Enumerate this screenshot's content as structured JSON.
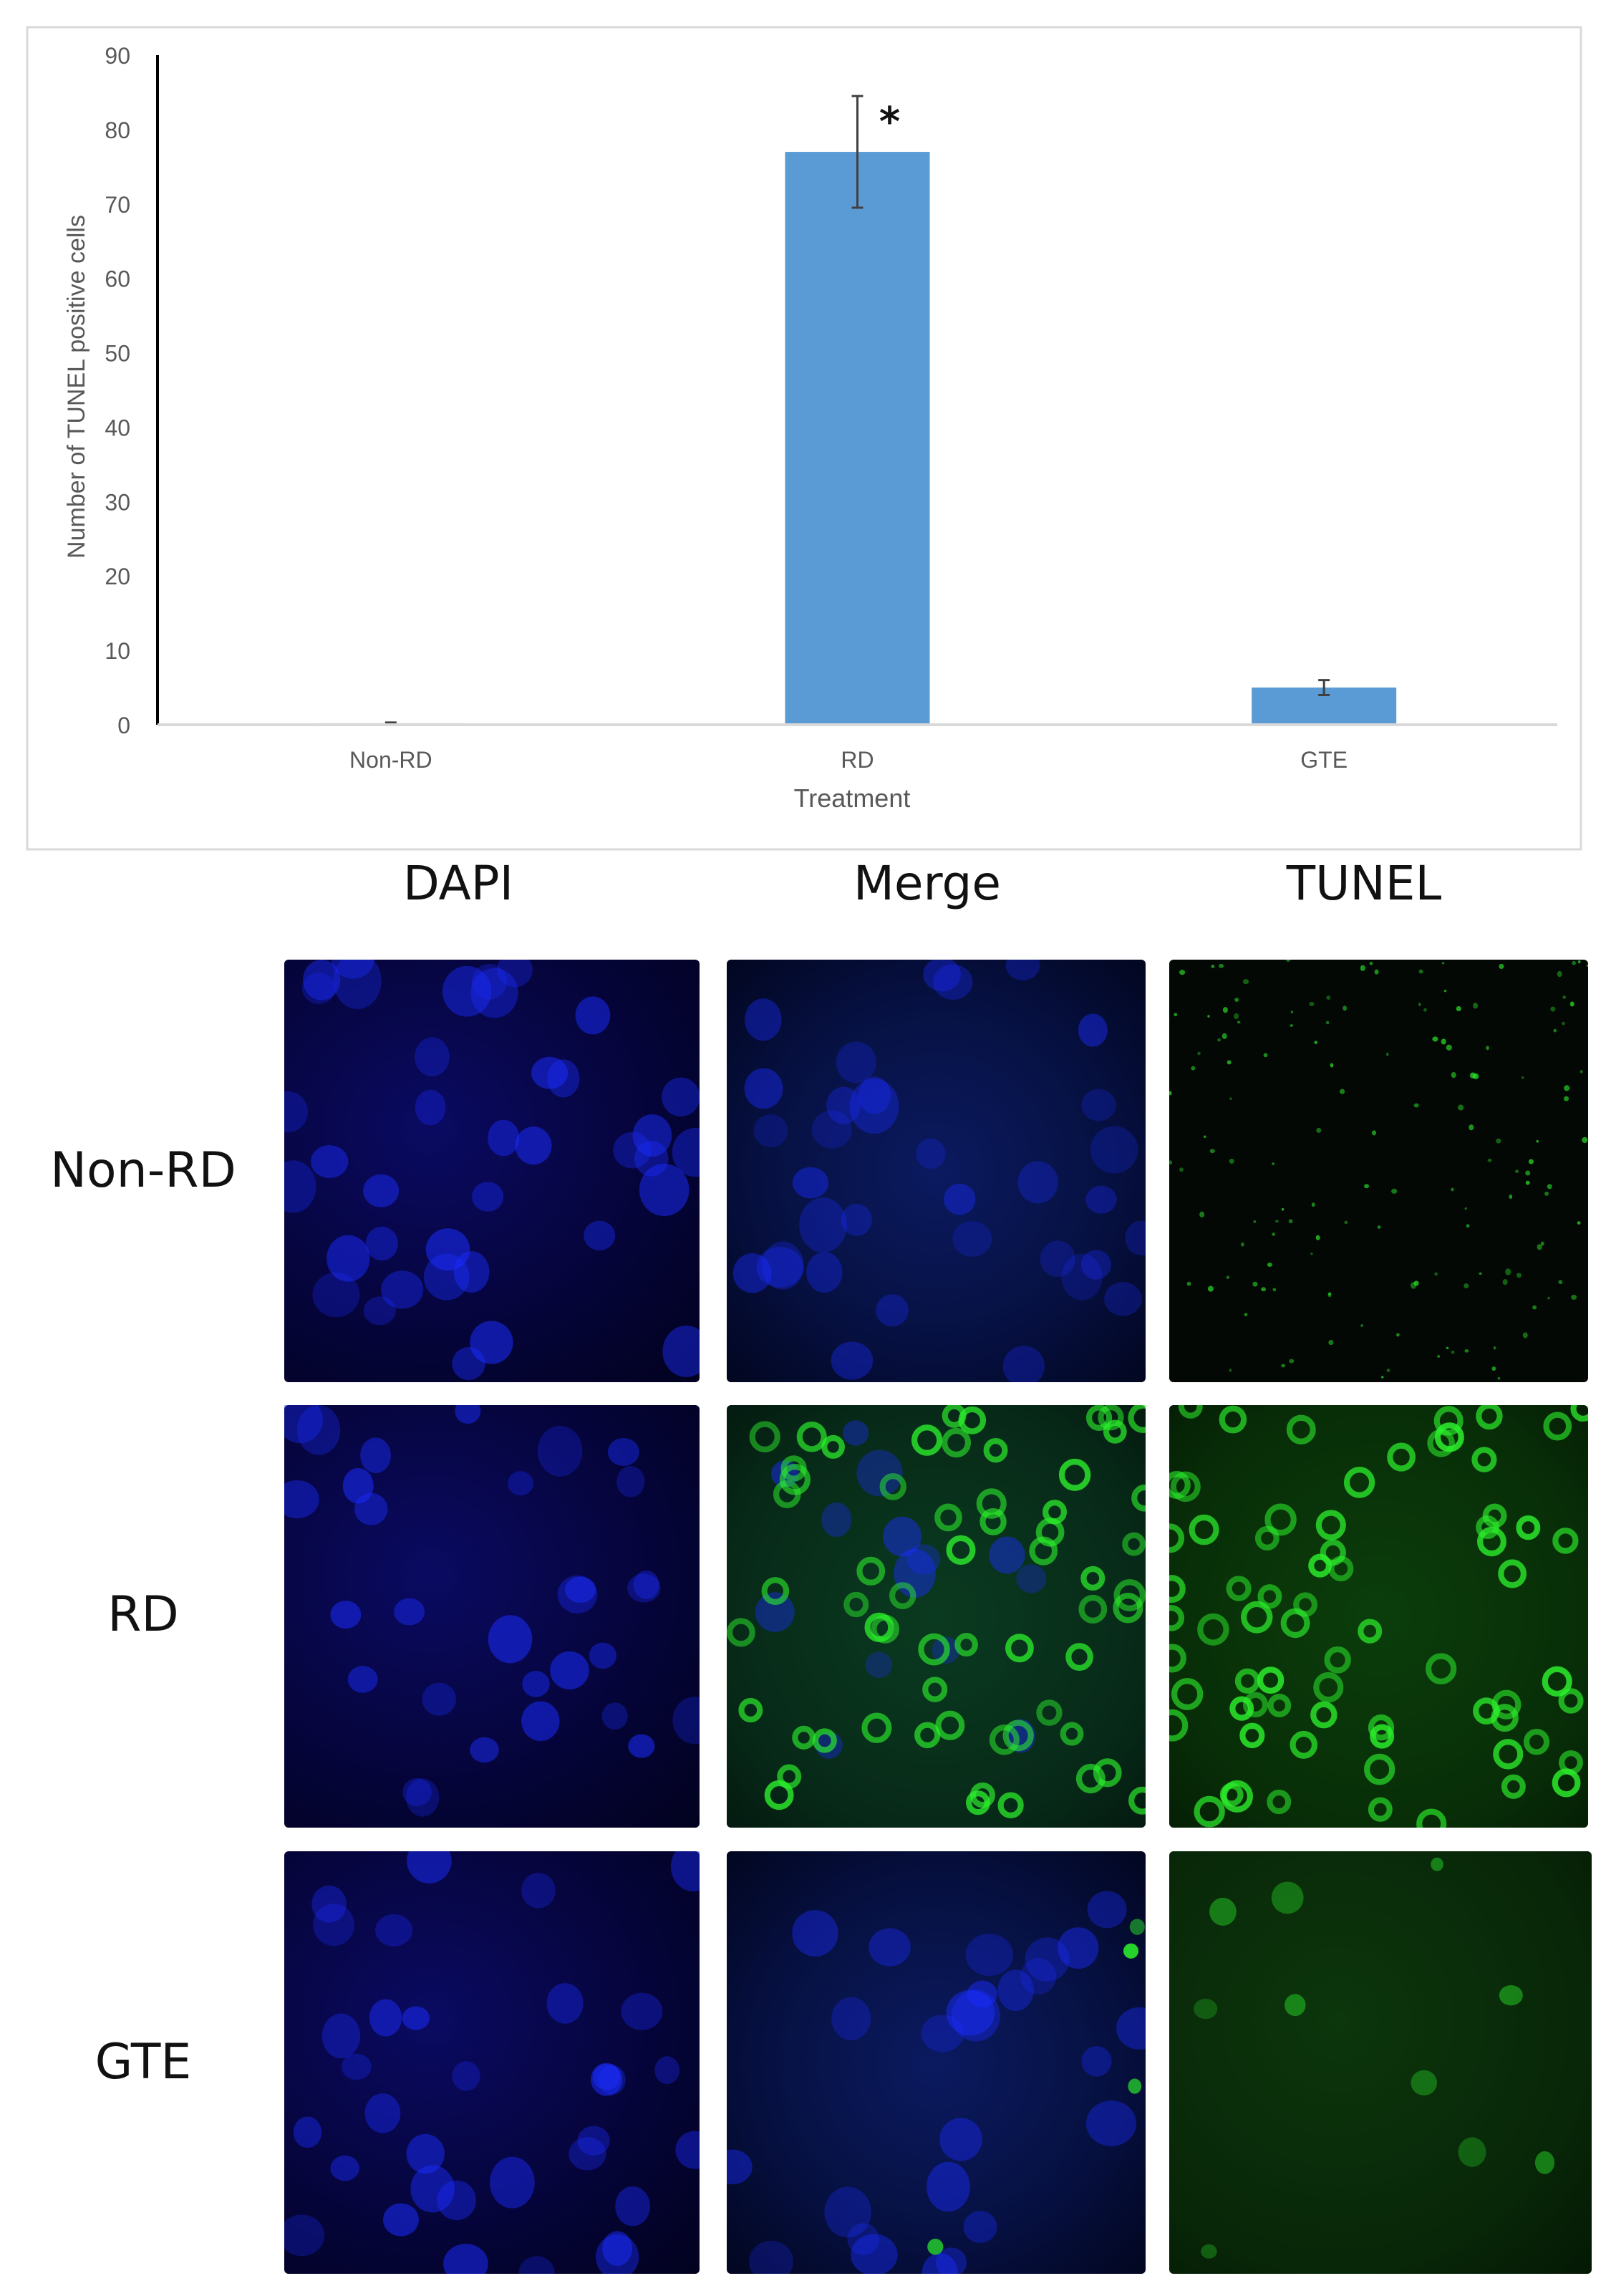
{
  "chart_data": {
    "type": "bar",
    "categories": [
      "Non-RD",
      "RD",
      "GTE"
    ],
    "values": [
      0.2,
      77,
      5
    ],
    "errors": [
      0.1,
      7.5,
      1
    ],
    "annotations": [
      {
        "category": "RD",
        "text": "*"
      }
    ],
    "xlabel": "Treatment",
    "ylabel": "Number of TUNEL positive cells",
    "ylim": [
      0,
      90
    ],
    "yticks": [
      0,
      10,
      20,
      30,
      40,
      50,
      60,
      70,
      80,
      90
    ],
    "grid": false,
    "colors": {
      "bar": "#5b9bd5",
      "axis": "#d9d9d9",
      "text": "#595959"
    }
  },
  "panel": {
    "column_headers": [
      "DAPI",
      "Merge",
      "TUNEL"
    ],
    "row_headers": [
      "Non-RD",
      "RD",
      "GTE"
    ],
    "colors": {
      "dapi": "#1a2cff",
      "tunel": "#2cf02c"
    }
  }
}
